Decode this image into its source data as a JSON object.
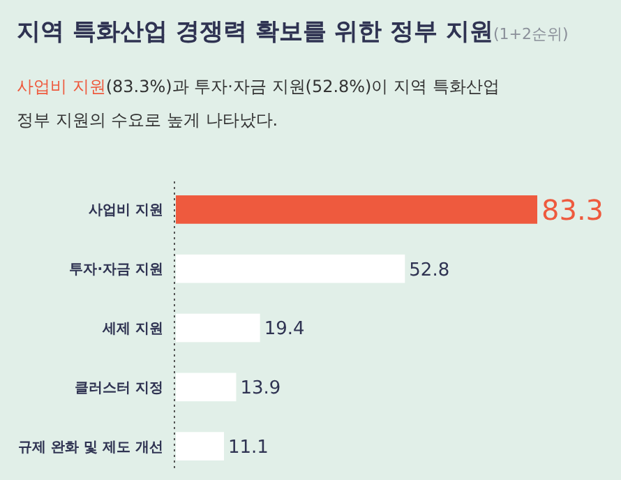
{
  "chart_data": {
    "type": "bar",
    "orientation": "horizontal",
    "title": "지역 특화산업 경쟁력 확보를 위한 정부 지원",
    "subtitle": "(1+2순위)",
    "annotations": [
      "사업비 지원(83.3%)과  투자·자금 지원(52.8%)이 지역 특화산업",
      "정부 지원의 수요로 높게 나타났다."
    ],
    "categories": [
      "사업비 지원",
      "투자·자금 지원",
      "세제 지원",
      "클러스터 지정",
      "규제 완화 및 제도 개선"
    ],
    "values": [
      83.3,
      52.8,
      19.4,
      13.9,
      11.1
    ],
    "colors": [
      "#ee5a3e",
      "#ffffff",
      "#ffffff",
      "#ffffff",
      "#ffffff"
    ],
    "data_labels": true
  }
}
